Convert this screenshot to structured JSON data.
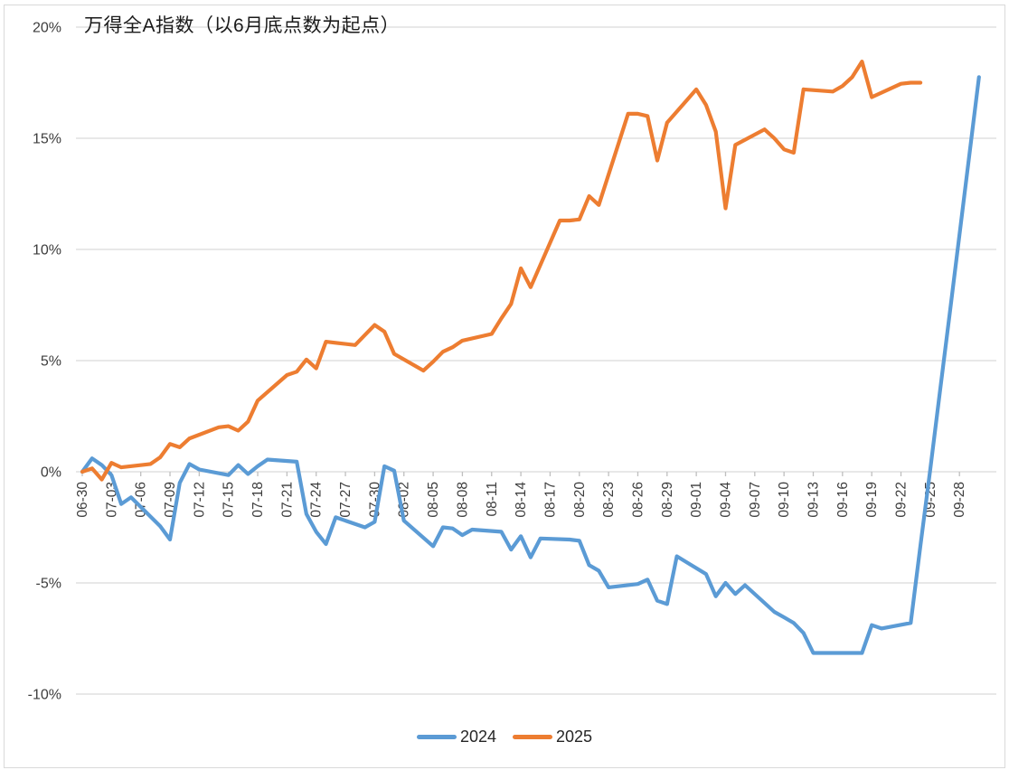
{
  "title": "万得全A指数（以6月底点数为起点）",
  "colors": {
    "series_2024": "#5B9BD5",
    "series_2025": "#ED7D31",
    "gridline": "#D9D9D9",
    "tick": "#BFBFBF",
    "axis_text": "#3d3d3d",
    "title_text": "#1a1a1a"
  },
  "y_axis": {
    "tick_labels": [
      "20%",
      "15%",
      "10%",
      "5%",
      "0%",
      "-5%",
      "-10%"
    ],
    "tick_values": [
      20,
      15,
      10,
      5,
      0,
      -5,
      -10
    ],
    "min": -10,
    "max": 20,
    "unit": "%"
  },
  "x_axis": {
    "tick_labels": [
      "06-30",
      "07-03",
      "07-06",
      "07-09",
      "07-12",
      "07-15",
      "07-18",
      "07-21",
      "07-24",
      "07-27",
      "07-30",
      "08-02",
      "08-05",
      "08-08",
      "08-11",
      "08-14",
      "08-17",
      "08-20",
      "08-23",
      "08-26",
      "08-29",
      "09-01",
      "09-04",
      "09-07",
      "09-10",
      "09-13",
      "09-16",
      "09-19",
      "09-22",
      "09-25",
      "09-28"
    ]
  },
  "legend": [
    {
      "label": "2024",
      "color": "#5B9BD5"
    },
    {
      "label": "2025",
      "color": "#ED7D31"
    }
  ],
  "chart_data": {
    "type": "line",
    "title": "万得全A指数（以6月底点数为起点）",
    "xlabel": "",
    "ylabel": "",
    "y_unit": "%",
    "ylim": [
      -10,
      20
    ],
    "grid": true,
    "legend_position": "bottom",
    "x_is_calendar_days_from_06_30": true,
    "series": [
      {
        "name": "2024",
        "color": "#5B9BD5",
        "points": [
          [
            "06-30",
            0.0
          ],
          [
            "07-01",
            0.6
          ],
          [
            "07-02",
            0.3
          ],
          [
            "07-03",
            -0.15
          ],
          [
            "07-04",
            -1.45
          ],
          [
            "07-05",
            -1.15
          ],
          [
            "07-08",
            -2.45
          ],
          [
            "07-09",
            -3.05
          ],
          [
            "07-10",
            -0.5
          ],
          [
            "07-11",
            0.35
          ],
          [
            "07-12",
            0.1
          ],
          [
            "07-15",
            -0.15
          ],
          [
            "07-16",
            0.3
          ],
          [
            "07-17",
            -0.1
          ],
          [
            "07-18",
            0.25
          ],
          [
            "07-19",
            0.55
          ],
          [
            "07-22",
            0.45
          ],
          [
            "07-23",
            -1.9
          ],
          [
            "07-24",
            -2.7
          ],
          [
            "07-25",
            -3.25
          ],
          [
            "07-26",
            -2.05
          ],
          [
            "07-29",
            -2.5
          ],
          [
            "07-30",
            -2.25
          ],
          [
            "07-31",
            0.25
          ],
          [
            "08-01",
            0.05
          ],
          [
            "08-02",
            -2.2
          ],
          [
            "08-05",
            -3.35
          ],
          [
            "08-06",
            -2.5
          ],
          [
            "08-07",
            -2.55
          ],
          [
            "08-08",
            -2.85
          ],
          [
            "08-09",
            -2.6
          ],
          [
            "08-12",
            -2.7
          ],
          [
            "08-13",
            -3.5
          ],
          [
            "08-14",
            -2.9
          ],
          [
            "08-15",
            -3.85
          ],
          [
            "08-16",
            -3.0
          ],
          [
            "08-19",
            -3.05
          ],
          [
            "08-20",
            -3.1
          ],
          [
            "08-21",
            -4.2
          ],
          [
            "08-22",
            -4.45
          ],
          [
            "08-23",
            -5.2
          ],
          [
            "08-26",
            -5.05
          ],
          [
            "08-27",
            -4.85
          ],
          [
            "08-28",
            -5.8
          ],
          [
            "08-29",
            -5.95
          ],
          [
            "08-30",
            -3.8
          ],
          [
            "09-02",
            -4.6
          ],
          [
            "09-03",
            -5.6
          ],
          [
            "09-04",
            -5.0
          ],
          [
            "09-05",
            -5.5
          ],
          [
            "09-06",
            -5.1
          ],
          [
            "09-09",
            -6.3
          ],
          [
            "09-10",
            -6.55
          ],
          [
            "09-11",
            -6.8
          ],
          [
            "09-12",
            -7.25
          ],
          [
            "09-13",
            -8.15
          ],
          [
            "09-18",
            -8.15
          ],
          [
            "09-19",
            -6.9
          ],
          [
            "09-20",
            -7.05
          ],
          [
            "09-23",
            -6.8
          ],
          [
            "09-24",
            -3.3
          ],
          [
            "09-25",
            0.1
          ],
          [
            "09-26",
            3.6
          ],
          [
            "09-27",
            7.1
          ],
          [
            "09-30",
            17.75
          ]
        ]
      },
      {
        "name": "2025",
        "color": "#ED7D31",
        "points": [
          [
            "06-30",
            0.0
          ],
          [
            "07-01",
            0.15
          ],
          [
            "07-02",
            -0.35
          ],
          [
            "07-03",
            0.4
          ],
          [
            "07-04",
            0.2
          ],
          [
            "07-07",
            0.35
          ],
          [
            "07-08",
            0.65
          ],
          [
            "07-09",
            1.25
          ],
          [
            "07-10",
            1.1
          ],
          [
            "07-11",
            1.5
          ],
          [
            "07-14",
            2.0
          ],
          [
            "07-15",
            2.05
          ],
          [
            "07-16",
            1.85
          ],
          [
            "07-17",
            2.25
          ],
          [
            "07-18",
            3.2
          ],
          [
            "07-21",
            4.35
          ],
          [
            "07-22",
            4.5
          ],
          [
            "07-23",
            5.05
          ],
          [
            "07-24",
            4.65
          ],
          [
            "07-25",
            5.85
          ],
          [
            "07-28",
            5.7
          ],
          [
            "07-29",
            6.15
          ],
          [
            "07-30",
            6.6
          ],
          [
            "07-31",
            6.3
          ],
          [
            "08-01",
            5.3
          ],
          [
            "08-04",
            4.55
          ],
          [
            "08-05",
            4.95
          ],
          [
            "08-06",
            5.4
          ],
          [
            "08-07",
            5.6
          ],
          [
            "08-08",
            5.9
          ],
          [
            "08-11",
            6.2
          ],
          [
            "08-12",
            6.9
          ],
          [
            "08-13",
            7.55
          ],
          [
            "08-14",
            9.15
          ],
          [
            "08-15",
            8.3
          ],
          [
            "08-18",
            11.3
          ],
          [
            "08-19",
            11.3
          ],
          [
            "08-20",
            11.35
          ],
          [
            "08-21",
            12.4
          ],
          [
            "08-22",
            12.0
          ],
          [
            "08-25",
            16.1
          ],
          [
            "08-26",
            16.1
          ],
          [
            "08-27",
            16.0
          ],
          [
            "08-28",
            14.0
          ],
          [
            "08-29",
            15.7
          ],
          [
            "09-01",
            17.2
          ],
          [
            "09-02",
            16.5
          ],
          [
            "09-03",
            15.3
          ],
          [
            "09-04",
            11.85
          ],
          [
            "09-05",
            14.7
          ],
          [
            "09-08",
            15.4
          ],
          [
            "09-09",
            15.0
          ],
          [
            "09-10",
            14.5
          ],
          [
            "09-11",
            14.35
          ],
          [
            "09-12",
            17.2
          ],
          [
            "09-15",
            17.1
          ],
          [
            "09-16",
            17.35
          ],
          [
            "09-17",
            17.75
          ],
          [
            "09-18",
            18.45
          ],
          [
            "09-19",
            16.85
          ],
          [
            "09-22",
            17.45
          ],
          [
            "09-23",
            17.5
          ],
          [
            "09-24",
            17.5
          ]
        ]
      }
    ]
  }
}
